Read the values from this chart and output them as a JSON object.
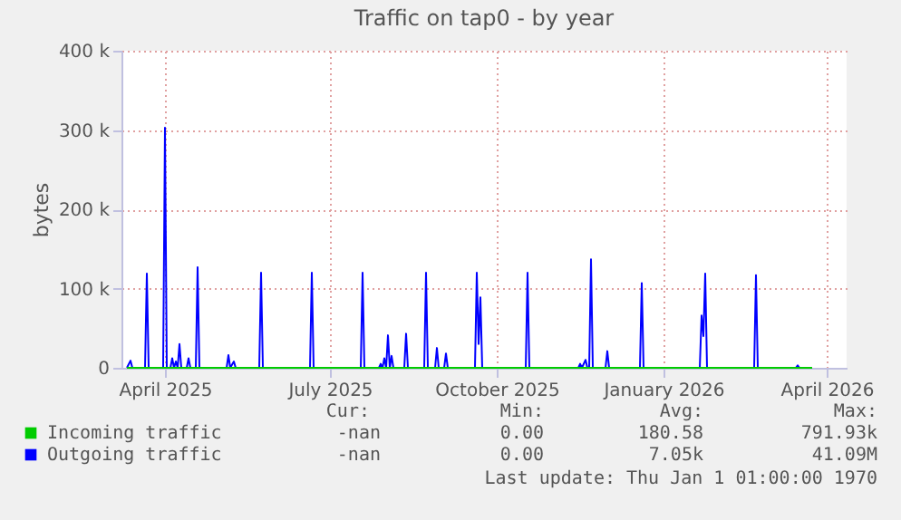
{
  "chart_data": {
    "type": "line",
    "title": "Traffic on tap0 - by year",
    "ylabel": "bytes",
    "xlim": [
      "2025-03-23",
      "2026-04-27"
    ],
    "xticks": [
      {
        "value": "2025-04-16",
        "label": "April 2025"
      },
      {
        "value": "2025-07-16",
        "label": "July 2025"
      },
      {
        "value": "2025-10-16",
        "label": "October 2025"
      },
      {
        "value": "2026-01-16",
        "label": "January 2026"
      },
      {
        "value": "2026-04-16",
        "label": "April 2026"
      }
    ],
    "ylim": [
      0,
      400000
    ],
    "yticks": [
      0,
      {
        "value": 100000,
        "label": "100 k"
      },
      {
        "value": 200000,
        "label": "200 k"
      },
      {
        "value": 300000,
        "label": "300 k"
      },
      {
        "value": 400000,
        "label": "400 k"
      }
    ],
    "grid": true,
    "legend": "bottom",
    "marker": "none",
    "line_style": "solid",
    "series": [
      {
        "name": "Incoming traffic",
        "color": "#00cc00",
        "x": [
          "2025-03-26",
          "2026-04-08"
        ],
        "values": [
          0,
          0
        ]
      },
      {
        "name": "Outgoing traffic",
        "color": "#0000ff",
        "x": [
          "2025-03-26",
          "2025-03-28",
          "2025-03-29",
          "2025-04-05",
          "2025-04-06",
          "2025-04-07",
          "2025-04-15",
          "2025-04-16",
          "2025-04-17",
          "2025-04-19",
          "2025-04-20",
          "2025-04-21",
          "2025-04-22",
          "2025-04-23",
          "2025-04-24",
          "2025-04-25",
          "2025-04-28",
          "2025-04-29",
          "2025-04-30",
          "2025-05-03",
          "2025-05-04",
          "2025-05-05",
          "2025-05-20",
          "2025-05-21",
          "2025-05-22",
          "2025-05-24",
          "2025-05-25",
          "2025-06-07",
          "2025-06-08",
          "2025-06-09",
          "2025-07-05",
          "2025-07-06",
          "2025-07-07",
          "2025-08-02",
          "2025-08-03",
          "2025-08-04",
          "2025-08-12",
          "2025-08-13",
          "2025-08-14",
          "2025-08-15",
          "2025-08-16",
          "2025-08-17",
          "2025-08-18",
          "2025-08-19",
          "2025-08-20",
          "2025-08-26",
          "2025-08-27",
          "2025-08-28",
          "2025-09-06",
          "2025-09-07",
          "2025-09-08",
          "2025-09-12",
          "2025-09-13",
          "2025-09-14",
          "2025-09-17",
          "2025-09-18",
          "2025-09-19",
          "2025-10-04",
          "2025-10-05",
          "2025-10-06",
          "2025-10-07",
          "2025-10-08",
          "2025-11-01",
          "2025-11-02",
          "2025-11-03",
          "2025-11-30",
          "2025-12-01",
          "2025-12-02",
          "2025-12-04",
          "2025-12-05",
          "2025-12-06",
          "2025-12-07",
          "2025-12-08",
          "2025-12-15",
          "2025-12-16",
          "2025-12-17",
          "2026-01-03",
          "2026-01-04",
          "2026-01-05",
          "2026-02-05",
          "2026-02-06",
          "2026-02-07",
          "2026-02-08",
          "2026-02-09",
          "2026-03-07",
          "2026-03-08",
          "2026-03-09",
          "2026-03-30",
          "2026-03-31",
          "2026-04-01",
          "2026-04-08"
        ],
        "values": [
          0,
          9000,
          0,
          0,
          119000,
          0,
          0,
          303000,
          0,
          0,
          12000,
          0,
          8000,
          0,
          30000,
          0,
          0,
          12000,
          0,
          0,
          127000,
          0,
          0,
          16000,
          0,
          8000,
          0,
          0,
          120000,
          0,
          0,
          120000,
          0,
          0,
          120000,
          0,
          0,
          5000,
          0,
          12000,
          0,
          41000,
          0,
          15000,
          0,
          0,
          43000,
          0,
          0,
          120000,
          0,
          0,
          25000,
          0,
          0,
          18000,
          0,
          0,
          120000,
          30000,
          89000,
          0,
          0,
          120000,
          0,
          0,
          5000,
          0,
          10000,
          0,
          0,
          137000,
          0,
          0,
          21000,
          0,
          0,
          107000,
          0,
          0,
          66000,
          40000,
          119000,
          0,
          0,
          117000,
          0,
          0,
          3000,
          0,
          0
        ]
      }
    ],
    "annotations": [
      "Cur:",
      "Min:",
      "Avg:",
      "Max:",
      "-nan",
      "0.00",
      "180.58",
      "791.93k",
      "-nan",
      "0.00",
      "7.05k",
      "41.09M",
      "Last update: Thu Jan  1 01:00:00 1970"
    ]
  }
}
